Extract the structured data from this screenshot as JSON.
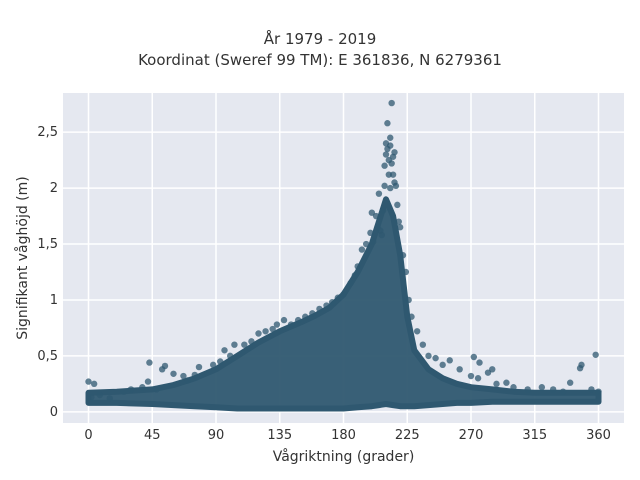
{
  "chart_data": {
    "type": "scatter",
    "title": "År 1979 - 2019",
    "subtitle": "Koordinat (Sweref 99 TM): E 361836, N 6279361",
    "xlabel": "Vågriktning (grader)",
    "ylabel": "Signifikant våghöjd (m)",
    "xlim": [
      -18,
      378
    ],
    "ylim": [
      -0.1,
      2.85
    ],
    "x_ticks": [
      0,
      45,
      90,
      135,
      180,
      225,
      270,
      315,
      360
    ],
    "x_tick_labels": [
      "0",
      "45",
      "90",
      "135",
      "180",
      "225",
      "270",
      "315",
      "360"
    ],
    "y_ticks": [
      0,
      0.5,
      1,
      1.5,
      2,
      2.5
    ],
    "y_tick_labels": [
      "0",
      "0,5",
      "1",
      "1,5",
      "2",
      "2,5"
    ],
    "grid": true,
    "marker_color": "#2f5870",
    "background_color": "#e5e8f0",
    "envelope": {
      "x": [
        0,
        20,
        45,
        60,
        75,
        90,
        105,
        120,
        135,
        150,
        160,
        170,
        180,
        190,
        200,
        205,
        210,
        215,
        220,
        225,
        230,
        240,
        250,
        260,
        270,
        285,
        300,
        315,
        330,
        345,
        360
      ],
      "y_max": [
        0.17,
        0.18,
        0.2,
        0.24,
        0.3,
        0.38,
        0.5,
        0.62,
        0.72,
        0.8,
        0.86,
        0.93,
        1.05,
        1.25,
        1.5,
        1.7,
        1.9,
        1.75,
        1.4,
        0.85,
        0.55,
        0.38,
        0.3,
        0.25,
        0.22,
        0.2,
        0.18,
        0.17,
        0.17,
        0.17,
        0.17
      ],
      "y_min": [
        0.08,
        0.08,
        0.07,
        0.06,
        0.05,
        0.04,
        0.03,
        0.03,
        0.03,
        0.03,
        0.03,
        0.03,
        0.03,
        0.04,
        0.05,
        0.06,
        0.07,
        0.06,
        0.05,
        0.05,
        0.05,
        0.06,
        0.07,
        0.08,
        0.08,
        0.09,
        0.09,
        0.09,
        0.09,
        0.09,
        0.09
      ]
    },
    "points": [
      {
        "x": 0,
        "y": 0.27
      },
      {
        "x": 4,
        "y": 0.25
      },
      {
        "x": 2,
        "y": 0.13
      },
      {
        "x": 8,
        "y": 0.15
      },
      {
        "x": 15,
        "y": 0.12
      },
      {
        "x": 25,
        "y": 0.18
      },
      {
        "x": 30,
        "y": 0.2
      },
      {
        "x": 38,
        "y": 0.22
      },
      {
        "x": 42,
        "y": 0.27
      },
      {
        "x": 43,
        "y": 0.44
      },
      {
        "x": 52,
        "y": 0.38
      },
      {
        "x": 54,
        "y": 0.41
      },
      {
        "x": 48,
        "y": 0.2
      },
      {
        "x": 60,
        "y": 0.34
      },
      {
        "x": 67,
        "y": 0.32
      },
      {
        "x": 70,
        "y": 0.28
      },
      {
        "x": 75,
        "y": 0.33
      },
      {
        "x": 78,
        "y": 0.4
      },
      {
        "x": 88,
        "y": 0.42
      },
      {
        "x": 93,
        "y": 0.45
      },
      {
        "x": 96,
        "y": 0.55
      },
      {
        "x": 100,
        "y": 0.5
      },
      {
        "x": 103,
        "y": 0.6
      },
      {
        "x": 110,
        "y": 0.6
      },
      {
        "x": 115,
        "y": 0.63
      },
      {
        "x": 120,
        "y": 0.7
      },
      {
        "x": 125,
        "y": 0.72
      },
      {
        "x": 130,
        "y": 0.74
      },
      {
        "x": 133,
        "y": 0.78
      },
      {
        "x": 138,
        "y": 0.82
      },
      {
        "x": 143,
        "y": 0.78
      },
      {
        "x": 148,
        "y": 0.82
      },
      {
        "x": 153,
        "y": 0.85
      },
      {
        "x": 158,
        "y": 0.88
      },
      {
        "x": 163,
        "y": 0.92
      },
      {
        "x": 168,
        "y": 0.95
      },
      {
        "x": 172,
        "y": 0.98
      },
      {
        "x": 176,
        "y": 1.02
      },
      {
        "x": 180,
        "y": 1.05
      },
      {
        "x": 185,
        "y": 1.15
      },
      {
        "x": 188,
        "y": 1.22
      },
      {
        "x": 190,
        "y": 1.3
      },
      {
        "x": 193,
        "y": 1.45
      },
      {
        "x": 196,
        "y": 1.5
      },
      {
        "x": 199,
        "y": 1.6
      },
      {
        "x": 200,
        "y": 1.78
      },
      {
        "x": 201,
        "y": 1.52
      },
      {
        "x": 203,
        "y": 1.75
      },
      {
        "x": 204,
        "y": 1.65
      },
      {
        "x": 205,
        "y": 1.95
      },
      {
        "x": 206,
        "y": 1.62
      },
      {
        "x": 207,
        "y": 1.58
      },
      {
        "x": 208,
        "y": 1.8
      },
      {
        "x": 209,
        "y": 2.02
      },
      {
        "x": 209,
        "y": 2.2
      },
      {
        "x": 210,
        "y": 2.4
      },
      {
        "x": 210,
        "y": 2.3
      },
      {
        "x": 211,
        "y": 2.58
      },
      {
        "x": 211,
        "y": 2.35
      },
      {
        "x": 212,
        "y": 2.25
      },
      {
        "x": 212,
        "y": 2.12
      },
      {
        "x": 213,
        "y": 2.45
      },
      {
        "x": 213,
        "y": 2.38
      },
      {
        "x": 213,
        "y": 2.0
      },
      {
        "x": 214,
        "y": 2.76
      },
      {
        "x": 214,
        "y": 2.22
      },
      {
        "x": 215,
        "y": 2.28
      },
      {
        "x": 215,
        "y": 2.12
      },
      {
        "x": 216,
        "y": 2.32
      },
      {
        "x": 216,
        "y": 2.05
      },
      {
        "x": 217,
        "y": 2.02
      },
      {
        "x": 218,
        "y": 1.85
      },
      {
        "x": 219,
        "y": 1.7
      },
      {
        "x": 220,
        "y": 1.65
      },
      {
        "x": 222,
        "y": 1.4
      },
      {
        "x": 224,
        "y": 1.25
      },
      {
        "x": 226,
        "y": 1.0
      },
      {
        "x": 228,
        "y": 0.85
      },
      {
        "x": 232,
        "y": 0.72
      },
      {
        "x": 236,
        "y": 0.6
      },
      {
        "x": 240,
        "y": 0.5
      },
      {
        "x": 245,
        "y": 0.48
      },
      {
        "x": 250,
        "y": 0.42
      },
      {
        "x": 255,
        "y": 0.46
      },
      {
        "x": 262,
        "y": 0.38
      },
      {
        "x": 270,
        "y": 0.32
      },
      {
        "x": 272,
        "y": 0.49
      },
      {
        "x": 275,
        "y": 0.3
      },
      {
        "x": 276,
        "y": 0.44
      },
      {
        "x": 282,
        "y": 0.35
      },
      {
        "x": 285,
        "y": 0.38
      },
      {
        "x": 288,
        "y": 0.25
      },
      {
        "x": 295,
        "y": 0.26
      },
      {
        "x": 300,
        "y": 0.22
      },
      {
        "x": 310,
        "y": 0.2
      },
      {
        "x": 320,
        "y": 0.22
      },
      {
        "x": 328,
        "y": 0.2
      },
      {
        "x": 335,
        "y": 0.18
      },
      {
        "x": 340,
        "y": 0.26
      },
      {
        "x": 347,
        "y": 0.39
      },
      {
        "x": 348,
        "y": 0.42
      },
      {
        "x": 355,
        "y": 0.2
      },
      {
        "x": 358,
        "y": 0.51
      },
      {
        "x": 360,
        "y": 0.18
      }
    ]
  }
}
